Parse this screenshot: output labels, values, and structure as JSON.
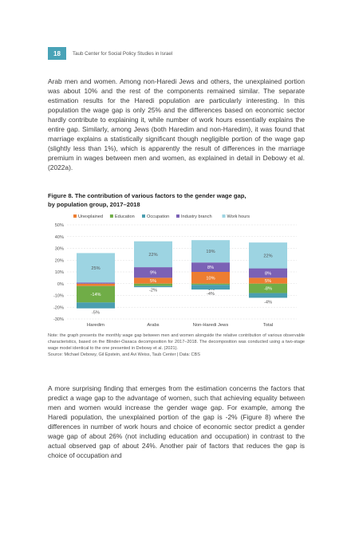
{
  "header": {
    "page_number": "18",
    "running_title": "Taub Center for Social Policy Studies in Israel"
  },
  "body_top": {
    "paragraph": "Arab men and women. Among non-Haredi Jews and others, the unexplained portion was about 10% and the rest of the components remained similar. The separate estimation results for the Haredi population are particularly interesting. In this population the wage gap is only 25% and the differences based on economic sector hardly contribute to explaining it, while number of work hours essentially explains the entire gap. Similarly, among Jews (both Haredim and non-Haredim), it was found that marriage explains a statistically significant though negligible portion of the wage gap (slightly less than 1%), which is apparently the result of differences in the marriage premium in wages between men and women, as explained in detail in Debowy et al. (2022a)."
  },
  "figure": {
    "title_line1": "Figure 8. The contribution of various factors to the gender wage gap,",
    "title_line2": "by population group, 2017–2018",
    "note": "Note: the graph presents the monthly wage gap between men and women alongside the relative contribution of various observable characteristics, based on the Blinder-Oaxaca decomposition for 2017–2018. The decomposition was conducted using a two-stage wage model identical to the one presented in Debowy et al. (2021).",
    "source": "Source: Michael Debowy, Gil Epstein, and Avi Weiss, Taub Center | Data: CBS"
  },
  "chart_data": {
    "type": "bar",
    "stacked": true,
    "categories": [
      "Haredim",
      "Arabs",
      "Non-Haredi Jews",
      "Total"
    ],
    "ylim": [
      -30,
      50
    ],
    "yticks": [
      -30,
      -20,
      -10,
      0,
      10,
      20,
      30,
      40,
      50
    ],
    "ytick_labels": [
      "-30%",
      "-20%",
      "-10%",
      "0%",
      "10%",
      "20%",
      "30%",
      "40%",
      "50%"
    ],
    "grid": true,
    "legend_position": "top",
    "series": [
      {
        "name": "Unexplained",
        "color": "#ed7d31",
        "values": [
          -2,
          5,
          10,
          5
        ],
        "labels": [
          "",
          "5%",
          "10%",
          "5%"
        ]
      },
      {
        "name": "Education",
        "color": "#70ad47",
        "values": [
          -14,
          -2,
          -1,
          -8
        ],
        "labels": [
          "-14%",
          "-2%",
          "-1%",
          "-8%"
        ]
      },
      {
        "name": "Occupation",
        "color": "#4a9eb0",
        "values": [
          -5,
          -1,
          -4,
          -4
        ],
        "labels": [
          "-5%",
          "",
          "-4%",
          "-4%"
        ]
      },
      {
        "name": "Industry branch",
        "color": "#7b61b5",
        "values": [
          1,
          9,
          8,
          8
        ],
        "labels": [
          "",
          "9%",
          "8%",
          "8%"
        ]
      },
      {
        "name": "Work hours",
        "color": "#9dd4e2",
        "values": [
          25,
          22,
          19,
          22
        ],
        "labels": [
          "25%",
          "22%",
          "19%",
          "22%"
        ]
      }
    ]
  },
  "body_bottom": {
    "paragraph": "A more surprising finding that emerges from the estimation concerns the factors that predict a wage gap to the advantage of women, such that achieving equality between men and women would increase the gender wage gap. For example, among the Haredi population, the unexplained portion of the gap is -2% (Figure 8) where the differences in number of work hours and choice of economic sector predict a gender wage gap of about 26% (not including education and occupation) in contrast to the actual observed gap of about 24%. Another pair of factors that reduces the gap is choice of occupation and"
  }
}
